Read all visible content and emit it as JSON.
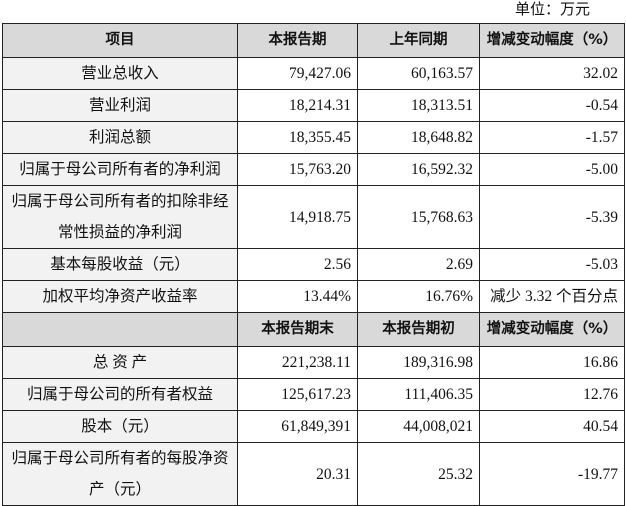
{
  "unit": "单位：万元",
  "header1": [
    "项目",
    "本报告期",
    "上年同期",
    "增减变动幅度（%）"
  ],
  "rows1": [
    {
      "label": "营业总收入",
      "current": "79,427.06",
      "prior": "60,163.57",
      "change": "32.02"
    },
    {
      "label": "营业利润",
      "current": "18,214.31",
      "prior": "18,313.51",
      "change": "-0.54"
    },
    {
      "label": "利润总额",
      "current": "18,355.45",
      "prior": "18,648.82",
      "change": "-1.57"
    },
    {
      "label": "归属于母公司所有者的净利润",
      "current": "15,763.20",
      "prior": "16,592.32",
      "change": "-5.00"
    },
    {
      "label": "归属于母公司所有者的扣除非经常性损益的净利润",
      "current": "14,918.75",
      "prior": "15,768.63",
      "change": "-5.39"
    },
    {
      "label": "基本每股收益（元）",
      "current": "2.56",
      "prior": "2.69",
      "change": "-5.03"
    },
    {
      "label": "加权平均净资产收益率",
      "current": "13.44%",
      "prior": "16.76%",
      "change": "减少 3.32 个百分点"
    }
  ],
  "header2": [
    "",
    "本报告期末",
    "本报告期初",
    "增减变动幅度（%）"
  ],
  "rows2": [
    {
      "label": "总 资 产",
      "current": "221,238.11",
      "prior": "189,316.98",
      "change": "16.86"
    },
    {
      "label": "归属于母公司的所有者权益",
      "current": "125,617.23",
      "prior": "111,406.35",
      "change": "12.76"
    },
    {
      "label": "股本（元）",
      "current": "61,849,391",
      "prior": "44,008,021",
      "change": "40.54"
    },
    {
      "label": "归属于母公司所有者的每股净资产（元）",
      "current": "20.31",
      "prior": "25.32",
      "change": "-19.77"
    }
  ]
}
